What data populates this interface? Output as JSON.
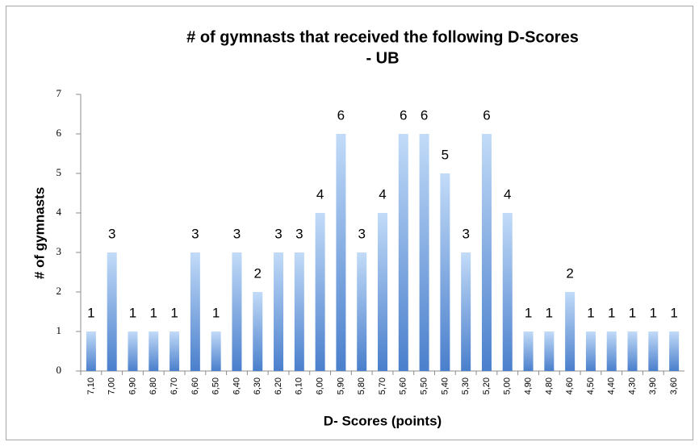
{
  "chart_data": {
    "type": "bar",
    "title": [
      "# of gymnasts that received the following D-Scores",
      "- UB"
    ],
    "x_label": "D- Scores (points)",
    "y_label": "# of gymnasts",
    "categories": [
      "7,10",
      "7,00",
      "6,90",
      "6,80",
      "6,70",
      "6,60",
      "6,50",
      "6,40",
      "6,30",
      "6,20",
      "6,10",
      "6,00",
      "5,90",
      "5,80",
      "5,70",
      "5,60",
      "5,50",
      "5,40",
      "5,30",
      "5,20",
      "5,00",
      "4,90",
      "4,80",
      "4,60",
      "4,50",
      "4,40",
      "4,30",
      "3,90",
      "3,60"
    ],
    "values": [
      1,
      3,
      1,
      1,
      1,
      3,
      1,
      3,
      2,
      3,
      3,
      4,
      6,
      3,
      4,
      6,
      6,
      5,
      3,
      6,
      4,
      1,
      1,
      2,
      1,
      1,
      1,
      1,
      1
    ],
    "color": "#4a7fcc",
    "ylim": [
      0,
      7
    ],
    "yticks": [
      0,
      1,
      2,
      3,
      4,
      5,
      6,
      7
    ],
    "grid": false
  }
}
